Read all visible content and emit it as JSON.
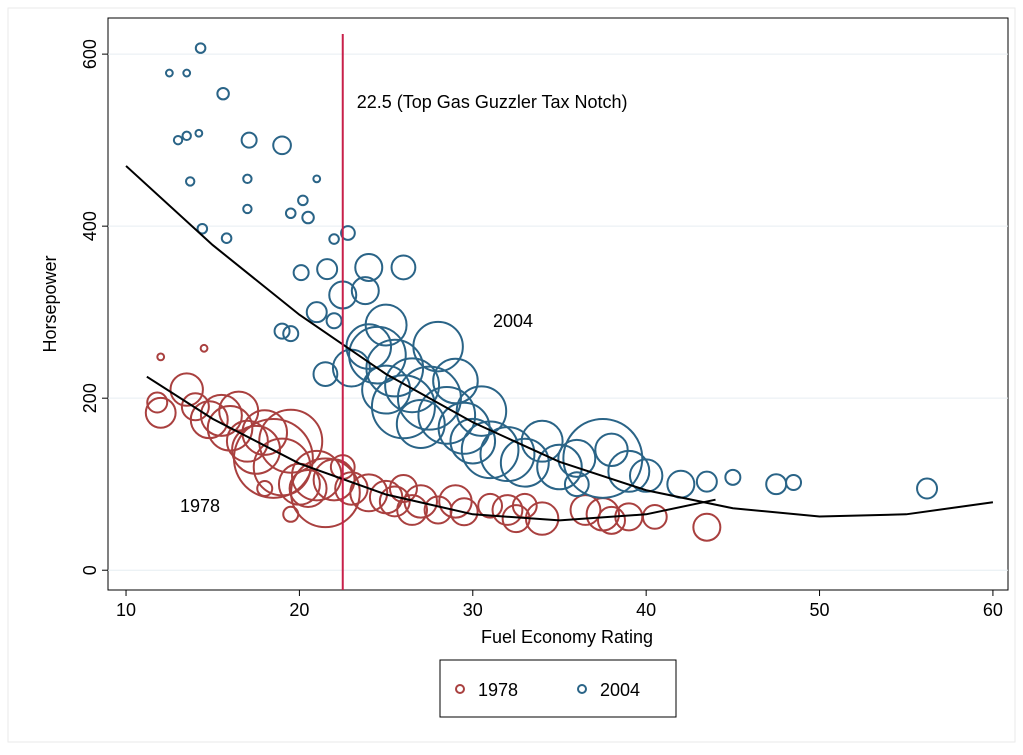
{
  "chart_data": {
    "type": "scatter",
    "xlabel": "Fuel Economy Rating",
    "ylabel": "Horsepower",
    "xlim": [
      8.96,
      60.87
    ],
    "ylim": [
      -23,
      642
    ],
    "xticks": [
      10,
      20,
      30,
      40,
      50,
      60
    ],
    "yticks": [
      0,
      200,
      400,
      600
    ],
    "legend": "bottom",
    "series": [
      {
        "name": "1978",
        "color": "#a9403f",
        "x": [
          11.8,
          12,
          13.5,
          14,
          14.8,
          15.5,
          16,
          16.5,
          17,
          17.5,
          18,
          18.5,
          19,
          19.5,
          20,
          20.5,
          21,
          21.5,
          22,
          22.5,
          23,
          24,
          25,
          25.5,
          26,
          26.5,
          27,
          28,
          29,
          29.5,
          31,
          32,
          32.5,
          33,
          34,
          36.5,
          37.5,
          38,
          39,
          40.5,
          43.5,
          12,
          14.5,
          18,
          19.5
        ],
        "values": [
          195,
          183,
          210,
          190,
          175,
          180,
          165,
          185,
          150,
          140,
          160,
          130,
          120,
          150,
          100,
          95,
          110,
          90,
          105,
          120,
          95,
          90,
          85,
          80,
          95,
          70,
          80,
          70,
          80,
          68,
          75,
          70,
          60,
          75,
          60,
          70,
          65,
          58,
          62,
          62,
          50,
          248,
          258,
          95,
          65
        ],
        "sizes": [
          2,
          5,
          6,
          4,
          8,
          10,
          12,
          9,
          10,
          14,
          12,
          40,
          20,
          25,
          10,
          8,
          15,
          30,
          10,
          3,
          6,
          8,
          6,
          5,
          4,
          5,
          6,
          4,
          6,
          4,
          3,
          5,
          4,
          3,
          6,
          5,
          6,
          4,
          4,
          3,
          4,
          0.1,
          0.1,
          1,
          1
        ]
      },
      {
        "name": "2004",
        "color": "#2a6487",
        "x": [
          12.5,
          13.5,
          14.3,
          15.6,
          13,
          13.5,
          14.2,
          17.1,
          19,
          17,
          13.7,
          21,
          17,
          19.5,
          20.2,
          20.5,
          14.4,
          15.8,
          22.8,
          22,
          20.1,
          21.6,
          24,
          26,
          22.5,
          23.8,
          21,
          22,
          19,
          19.5,
          21.5,
          23,
          24,
          25,
          25.5,
          26.5,
          27.5,
          28,
          28.5,
          29,
          29.5,
          30,
          31,
          32,
          33,
          34,
          35,
          36,
          37.5,
          39,
          40,
          42,
          43.5,
          45,
          47.5,
          48.5,
          56.2,
          24.5,
          27,
          26,
          30.5,
          25,
          36,
          38
        ],
        "values": [
          578,
          578,
          607,
          554,
          500,
          505,
          508,
          500,
          494,
          455,
          452,
          455,
          420,
          415,
          430,
          410,
          397,
          386,
          392,
          385,
          346,
          350,
          352,
          352,
          320,
          325,
          300,
          290,
          278,
          275,
          228,
          235,
          260,
          285,
          235,
          215,
          200,
          260,
          180,
          220,
          165,
          150,
          140,
          135,
          125,
          150,
          120,
          130,
          130,
          115,
          110,
          100,
          103,
          108,
          100,
          102,
          95,
          250,
          170,
          190,
          185,
          210,
          100,
          140
        ],
        "sizes": [
          0.1,
          0.1,
          0.3,
          0.5,
          0.2,
          0.2,
          0.1,
          1,
          1.5,
          0.2,
          0.2,
          0.1,
          0.2,
          0.3,
          0.3,
          0.5,
          0.3,
          0.3,
          0.8,
          0.3,
          1,
          2,
          4,
          3,
          4,
          4,
          2,
          1,
          1,
          1,
          3,
          8,
          12,
          10,
          20,
          18,
          25,
          15,
          20,
          12,
          16,
          12,
          20,
          18,
          14,
          10,
          12,
          8,
          40,
          10,
          6,
          4,
          2,
          1,
          2,
          1,
          2,
          20,
          14,
          25,
          15,
          14,
          3,
          6
        ]
      }
    ],
    "fits": [
      {
        "color": "#000000",
        "x": [
          11.2,
          15,
          20,
          25,
          30,
          35,
          40,
          44
        ],
        "values": [
          225,
          176,
          124,
          88,
          65,
          58,
          65,
          82
        ]
      },
      {
        "color": "#000000",
        "x": [
          10,
          15,
          20,
          25,
          30,
          35,
          40,
          45,
          50,
          55,
          60
        ],
        "values": [
          470,
          378,
          297,
          228,
          172,
          126,
          93,
          72,
          62.5,
          65,
          79
        ]
      }
    ],
    "vline": {
      "x": 22.5,
      "color": "#c8204a",
      "label": "22.5 (Top Gas Guzzler Tax Notch)"
    },
    "series_labels": [
      "1978",
      "2004"
    ]
  }
}
